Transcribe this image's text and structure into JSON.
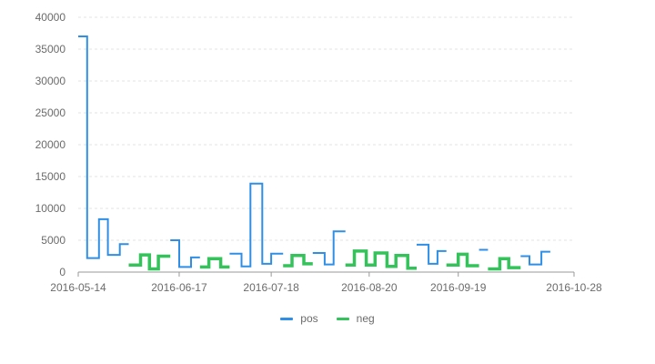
{
  "chart_data": {
    "type": "line",
    "step": "post",
    "x": [
      "2016-05-14",
      "2016-05-17",
      "2016-05-21",
      "2016-05-24",
      "2016-05-28",
      "2016-05-31",
      "2016-06-04",
      "2016-06-07",
      "2016-06-10",
      "2016-06-14",
      "2016-06-17",
      "2016-06-21",
      "2016-06-24",
      "2016-06-27",
      "2016-07-01",
      "2016-07-04",
      "2016-07-08",
      "2016-07-11",
      "2016-07-15",
      "2016-07-18",
      "2016-07-22",
      "2016-07-25",
      "2016-07-29",
      "2016-08-01",
      "2016-08-05",
      "2016-08-08",
      "2016-08-12",
      "2016-08-15",
      "2016-08-19",
      "2016-08-22",
      "2016-08-26",
      "2016-08-29",
      "2016-09-02",
      "2016-09-05",
      "2016-09-09",
      "2016-09-12",
      "2016-09-15",
      "2016-09-19",
      "2016-09-22",
      "2016-09-26",
      "2016-09-29",
      "2016-10-03",
      "2016-10-06",
      "2016-10-10",
      "2016-10-13",
      "2016-10-17",
      "2016-10-20",
      "2016-10-24",
      "2016-10-28"
    ],
    "series": [
      {
        "name": "pos",
        "color": "#2f8fe6",
        "values": [
          37000,
          2200,
          8300,
          2700,
          4400,
          null,
          null,
          null,
          null,
          5000,
          800,
          2300,
          null,
          null,
          null,
          2900,
          900,
          13900,
          1300,
          2900,
          null,
          null,
          null,
          3000,
          1200,
          6400,
          null,
          null,
          null,
          null,
          null,
          null,
          null,
          4300,
          1300,
          3300,
          null,
          null,
          null,
          3500,
          null,
          null,
          null,
          2500,
          1200,
          3200,
          null,
          null,
          900
        ]
      },
      {
        "name": "neg",
        "color": "#34c35a",
        "values": [
          null,
          null,
          null,
          null,
          null,
          1100,
          2700,
          500,
          2500,
          null,
          null,
          null,
          800,
          2100,
          800,
          null,
          null,
          null,
          null,
          null,
          1000,
          2600,
          1300,
          null,
          null,
          null,
          1100,
          3300,
          1100,
          3000,
          900,
          2600,
          600,
          null,
          null,
          null,
          1100,
          2800,
          1000,
          null,
          500,
          2100,
          700,
          null,
          null,
          null,
          null,
          null,
          null
        ]
      }
    ],
    "ylim": [
      0,
      40000
    ],
    "yticks": [
      0,
      5000,
      10000,
      15000,
      20000,
      25000,
      30000,
      35000,
      40000
    ],
    "xticks": [
      "2016-05-14",
      "2016-06-17",
      "2016-07-18",
      "2016-08-20",
      "2016-09-19",
      "2016-10-28"
    ],
    "xlim": [
      "2016-05-14",
      "2016-10-28"
    ],
    "grid": true,
    "legend": "bottom"
  }
}
